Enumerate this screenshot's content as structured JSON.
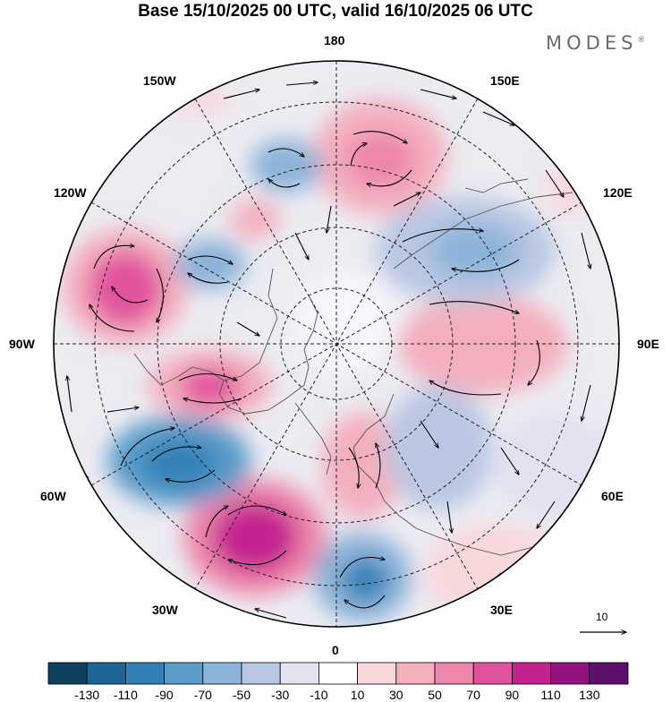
{
  "title": "Base 15/10/2025 00 UTC, valid 16/10/2025 06 UTC",
  "brand": "MODES",
  "brand_mark": "®",
  "map_labels": {
    "top": "180",
    "bottom": "0",
    "left": "90W",
    "right": "90E",
    "upper_left_1": "150W",
    "upper_left_2": "120W",
    "lower_left_1": "60W",
    "lower_left_2": "30W",
    "upper_right_1": "150E",
    "upper_right_2": "120E",
    "lower_right_1": "60E",
    "lower_right_2": "30E"
  },
  "reference_vector": "10",
  "colorbar": {
    "colors": [
      "#0d3f5f",
      "#1a6596",
      "#3280b8",
      "#5a9bc9",
      "#8cb3d9",
      "#b9c7e3",
      "#e2e2f0",
      "#ffffff",
      "#f9d8dc",
      "#f4afbd",
      "#ee85ab",
      "#e1529e",
      "#c4238f",
      "#93127f",
      "#5c0f6d"
    ],
    "ticks": [
      "-130",
      "-110",
      "-90",
      "-70",
      "-50",
      "-30",
      "-10",
      "10",
      "30",
      "50",
      "70",
      "90",
      "110",
      "130"
    ]
  }
}
